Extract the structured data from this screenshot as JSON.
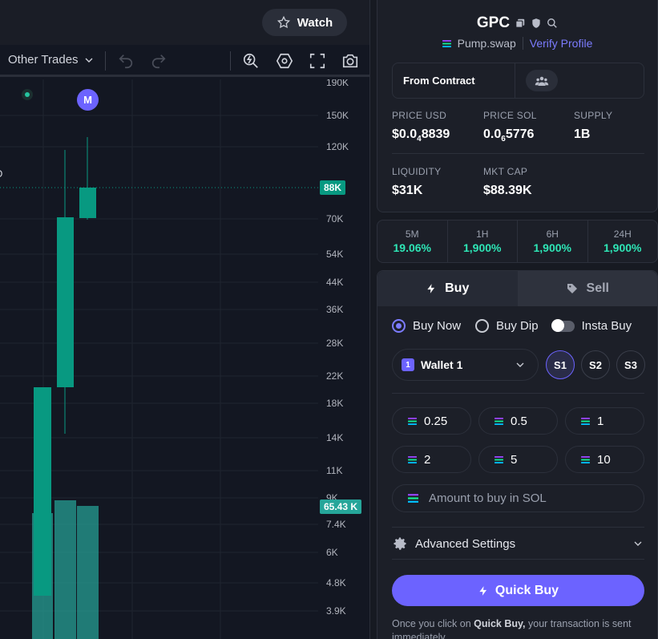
{
  "chart": {
    "watch_label": "Watch",
    "other_trades_label": "Other Trades",
    "d_edge_label": "D",
    "m_marker_label": "M",
    "price_axis": [
      "190K",
      "150K",
      "120K",
      "88K",
      "70K",
      "54K",
      "44K",
      "36K",
      "28K",
      "22K",
      "18K",
      "14K",
      "11K",
      "9K",
      "7.4K",
      "6K",
      "4.8K",
      "3.9K"
    ],
    "current_price_tag": "88K",
    "volume_tag": "65.43 K",
    "colors": {
      "up": "#089981",
      "volume": "#26a69a",
      "bg": "#131722"
    }
  },
  "token": {
    "symbol": "GPC",
    "dex": "Pump.swap",
    "verify_label": "Verify Profile",
    "from_contract_label": "From Contract",
    "stats": {
      "price_usd": {
        "label": "PRICE USD",
        "value_main": "$0.0",
        "value_sub": "4",
        "value_tail": "8839"
      },
      "price_sol": {
        "label": "PRICE SOL",
        "value_main": "0.0",
        "value_sub": "6",
        "value_tail": "5776"
      },
      "supply": {
        "label": "SUPPLY",
        "value": "1B"
      },
      "liquidity": {
        "label": "LIQUIDITY",
        "value": "$31K"
      },
      "mkt_cap": {
        "label": "MKT CAP",
        "value": "$88.39K"
      }
    }
  },
  "timeframes": [
    {
      "label": "5M",
      "value": "19.06%"
    },
    {
      "label": "1H",
      "value": "1,900%"
    },
    {
      "label": "6H",
      "value": "1,900%"
    },
    {
      "label": "24H",
      "value": "1,900%"
    }
  ],
  "trade": {
    "tab_buy": "Buy",
    "tab_sell": "Sell",
    "mode_buy_now": "Buy Now",
    "mode_buy_dip": "Buy Dip",
    "mode_insta_buy": "Insta Buy",
    "wallet_label": "Wallet 1",
    "wallet_badge": "1",
    "slots": [
      "S1",
      "S2",
      "S3"
    ],
    "amounts": [
      "0.25",
      "0.5",
      "1",
      "2",
      "5",
      "10"
    ],
    "amount_placeholder": "Amount to buy in SOL",
    "advanced_label": "Advanced Settings",
    "quick_buy_label": "Quick Buy",
    "note_prefix": "Once you click on ",
    "note_bold": "Quick Buy,",
    "note_suffix": " your transaction is sent immediately."
  }
}
